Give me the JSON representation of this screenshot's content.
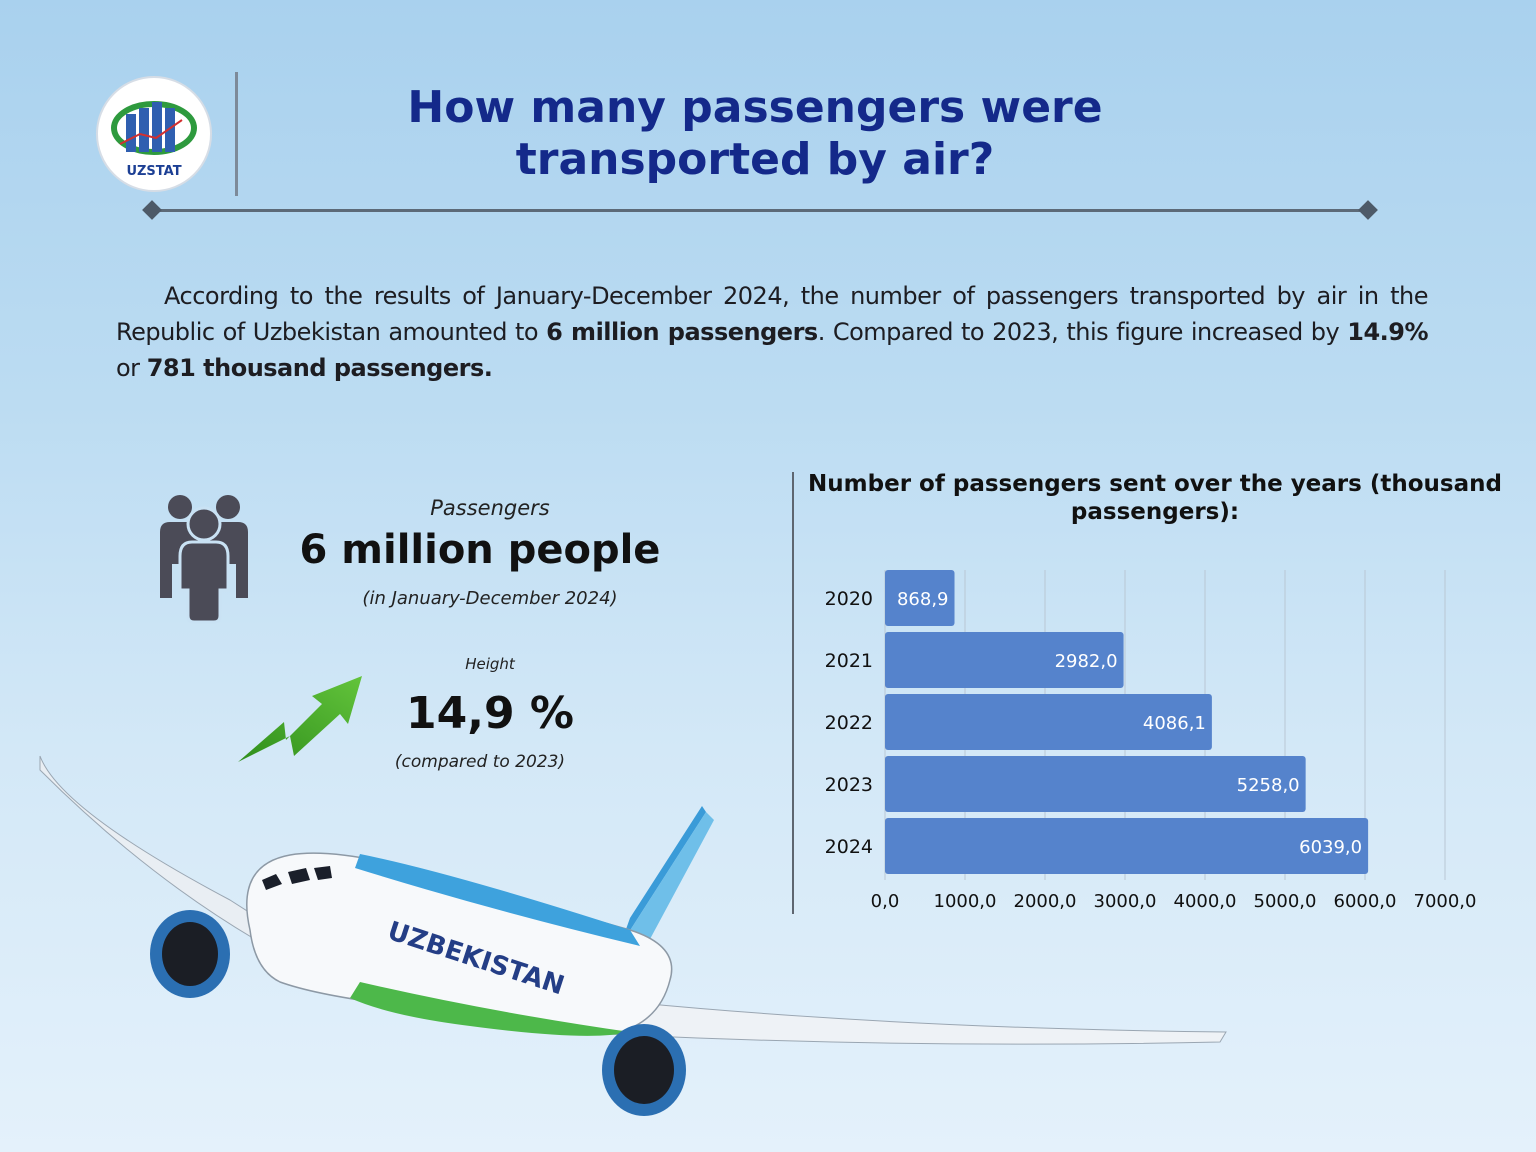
{
  "header": {
    "logo_text": "UZSTAT",
    "title": "How many passengers were transported by air?"
  },
  "intro": {
    "p1": "According to the results of January-December 2024, the number of passengers transported by air in the Republic of Uzbekistan amounted to ",
    "b1": "6 million passengers",
    "p2": ". Compared to 2023, this figure increased by ",
    "b2": "14.9%",
    "p3": " or ",
    "b3": "781 thousand passengers."
  },
  "stats": {
    "passengers_caption": "Passengers",
    "passengers_value": "6 million people",
    "passengers_period": "(in January-December 2024)",
    "growth_caption": "Height",
    "growth_value": "14,9 %",
    "growth_note": "(compared to 2023)"
  },
  "airplane": {
    "livery_text": "UZBEKISTAN"
  },
  "colors": {
    "title": "#14298a",
    "bar": "#5583cc",
    "arrow": "#3fa525",
    "icon": "#4b4b57"
  },
  "chart_data": {
    "type": "bar",
    "orientation": "horizontal",
    "title": "Number of passengers sent over the years (thousand passengers):",
    "categories": [
      "2020",
      "2021",
      "2022",
      "2023",
      "2024"
    ],
    "values": [
      868.9,
      2982.0,
      4086.1,
      5258.0,
      6039.0
    ],
    "value_labels": [
      "868,9",
      "2982,0",
      "4086,1",
      "5258,0",
      "6039,0"
    ],
    "xlim": [
      0,
      7000
    ],
    "x_ticks": [
      "0,0",
      "1000,0",
      "2000,0",
      "3000,0",
      "4000,0",
      "5000,0",
      "6000,0",
      "7000,0"
    ],
    "grid": true
  }
}
